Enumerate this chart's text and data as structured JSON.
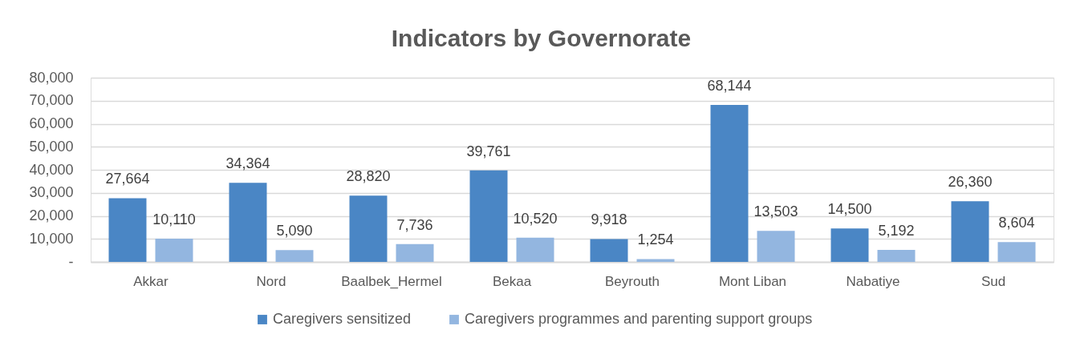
{
  "chart_data": {
    "type": "bar",
    "title": "Indicators by Governorate",
    "categories": [
      "Akkar",
      "Nord",
      "Baalbek_Hermel",
      "Bekaa",
      "Beyrouth",
      "Mont Liban",
      "Nabatiye",
      "Sud"
    ],
    "series": [
      {
        "name": "Caregivers sensitized",
        "color": "#4a86c5",
        "values": [
          27664,
          34364,
          28820,
          39761,
          9918,
          68144,
          14500,
          26360
        ],
        "value_labels": [
          "27,664",
          "34,364",
          "28,820",
          "39,761",
          "9,918",
          "68,144",
          "14,500",
          "26,360"
        ]
      },
      {
        "name": "Caregivers programmes and parenting support groups",
        "color": "#93b6e0",
        "values": [
          10110,
          5090,
          7736,
          10520,
          1254,
          13503,
          5192,
          8604
        ],
        "value_labels": [
          "10,110",
          "5,090",
          "7,736",
          "10,520",
          "1,254",
          "13,503",
          "5,192",
          "8,604"
        ]
      }
    ],
    "ylim": [
      0,
      80000
    ],
    "yticks": [
      {
        "value": 0,
        "label": "-"
      },
      {
        "value": 10000,
        "label": "10,000"
      },
      {
        "value": 20000,
        "label": "20,000"
      },
      {
        "value": 30000,
        "label": "30,000"
      },
      {
        "value": 40000,
        "label": "40,000"
      },
      {
        "value": 50000,
        "label": "50,000"
      },
      {
        "value": 60000,
        "label": "60,000"
      },
      {
        "value": 70000,
        "label": "70,000"
      },
      {
        "value": 80000,
        "label": "80,000"
      }
    ],
    "grid": "y",
    "legend": "bottom"
  }
}
